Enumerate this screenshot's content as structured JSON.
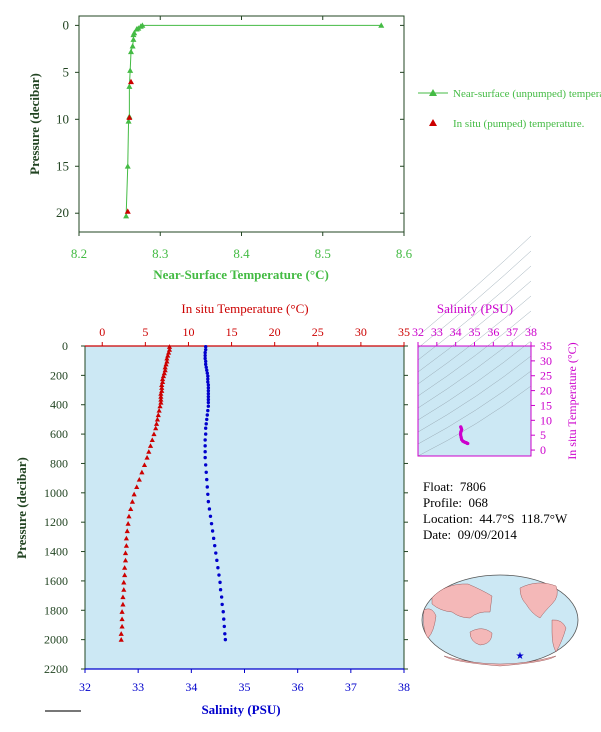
{
  "colors": {
    "green": "#44bb44",
    "red": "#cc0000",
    "blue": "#0000cc",
    "magenta": "#cc00cc",
    "axis_dark": "#224422",
    "panel_bg": "#cce8f4",
    "land": "#f4b8b8",
    "ocean": "#cce8f4"
  },
  "info": {
    "float": "Float:  7806",
    "profile": "Profile:  068",
    "location": "Location:  44.7°S  118.7°W",
    "date": "Date:  09/09/2014"
  },
  "chart_data": [
    {
      "type": "line",
      "name": "near-surface",
      "xlabel": "Near-Surface Temperature (°C)",
      "ylabel": "Pressure (decibar)",
      "xlim": [
        8.2,
        8.6
      ],
      "ylim": [
        22,
        -1
      ],
      "xticks": [
        "8.2",
        "8.3",
        "8.4",
        "8.5",
        "8.6"
      ],
      "yticks": [
        "0",
        "5",
        "10",
        "15",
        "20"
      ],
      "legend_position": "right",
      "series": [
        {
          "name": "Near-surface (unpumped) temperature.",
          "marker": "triangle-line",
          "x": [
            8.572,
            8.278,
            8.276,
            8.273,
            8.271,
            8.268,
            8.267,
            8.267,
            8.266,
            8.264,
            8.263,
            8.262,
            8.262,
            8.261,
            8.26,
            8.258
          ],
          "y": [
            0.0,
            0.0,
            0.1,
            0.3,
            0.4,
            0.8,
            1.0,
            1.5,
            2.2,
            2.8,
            4.8,
            6.5,
            9.7,
            10.2,
            15.0,
            20.3
          ]
        },
        {
          "name": "In situ (pumped) temperature.",
          "marker": "triangle",
          "x": [
            8.264,
            8.262,
            8.26
          ],
          "y": [
            6.0,
            9.8,
            19.8
          ]
        }
      ]
    },
    {
      "type": "scatter",
      "name": "profile",
      "ylabel": "Pressure (decibar)",
      "ylim": [
        2200,
        0
      ],
      "yticks": [
        "0",
        "200",
        "400",
        "600",
        "800",
        "1000",
        "1200",
        "1400",
        "1600",
        "1800",
        "2000",
        "2200"
      ],
      "top_axis": {
        "label": "In situ Temperature (°C)",
        "lim": [
          -2,
          35
        ],
        "ticks": [
          "0",
          "5",
          "10",
          "15",
          "20",
          "25",
          "30",
          "35"
        ]
      },
      "bottom_axis": {
        "label": "Salinity (PSU)",
        "lim": [
          32,
          38
        ],
        "ticks": [
          "32",
          "33",
          "34",
          "35",
          "36",
          "37",
          "38"
        ]
      },
      "series": [
        {
          "name": "temperature",
          "marker": "triangle",
          "points": [
            [
              7.8,
              5
            ],
            [
              7.8,
              25
            ],
            [
              7.7,
              45
            ],
            [
              7.6,
              65
            ],
            [
              7.5,
              85
            ],
            [
              7.5,
              105
            ],
            [
              7.4,
              125
            ],
            [
              7.3,
              145
            ],
            [
              7.3,
              165
            ],
            [
              7.2,
              185
            ],
            [
              7.1,
              205
            ],
            [
              7.0,
              225
            ],
            [
              7.0,
              245
            ],
            [
              6.9,
              265
            ],
            [
              6.9,
              285
            ],
            [
              6.9,
              305
            ],
            [
              6.8,
              325
            ],
            [
              6.8,
              345
            ],
            [
              6.8,
              365
            ],
            [
              6.8,
              385
            ],
            [
              6.7,
              410
            ],
            [
              6.6,
              440
            ],
            [
              6.5,
              470
            ],
            [
              6.4,
              500
            ],
            [
              6.3,
              530
            ],
            [
              6.2,
              560
            ],
            [
              6.0,
              600
            ],
            [
              5.8,
              640
            ],
            [
              5.6,
              680
            ],
            [
              5.4,
              720
            ],
            [
              5.2,
              760
            ],
            [
              4.9,
              810
            ],
            [
              4.6,
              860
            ],
            [
              4.3,
              910
            ],
            [
              4.0,
              960
            ],
            [
              3.7,
              1010
            ],
            [
              3.5,
              1060
            ],
            [
              3.3,
              1110
            ],
            [
              3.1,
              1160
            ],
            [
              3.0,
              1210
            ],
            [
              2.9,
              1260
            ],
            [
              2.8,
              1310
            ],
            [
              2.8,
              1360
            ],
            [
              2.7,
              1410
            ],
            [
              2.7,
              1460
            ],
            [
              2.6,
              1510
            ],
            [
              2.6,
              1560
            ],
            [
              2.5,
              1610
            ],
            [
              2.5,
              1660
            ],
            [
              2.4,
              1710
            ],
            [
              2.4,
              1760
            ],
            [
              2.3,
              1810
            ],
            [
              2.3,
              1860
            ],
            [
              2.3,
              1910
            ],
            [
              2.2,
              1960
            ],
            [
              2.2,
              2000
            ]
          ]
        },
        {
          "name": "salinity",
          "marker": "circle",
          "points": [
            [
              34.27,
              5
            ],
            [
              34.27,
              25
            ],
            [
              34.26,
              45
            ],
            [
              34.26,
              65
            ],
            [
              34.26,
              85
            ],
            [
              34.27,
              105
            ],
            [
              34.27,
              125
            ],
            [
              34.28,
              145
            ],
            [
              34.29,
              165
            ],
            [
              34.3,
              185
            ],
            [
              34.31,
              205
            ],
            [
              34.31,
              225
            ],
            [
              34.31,
              245
            ],
            [
              34.32,
              265
            ],
            [
              34.32,
              285
            ],
            [
              34.32,
              305
            ],
            [
              34.32,
              325
            ],
            [
              34.32,
              345
            ],
            [
              34.32,
              365
            ],
            [
              34.32,
              385
            ],
            [
              34.32,
              410
            ],
            [
              34.31,
              440
            ],
            [
              34.3,
              470
            ],
            [
              34.29,
              500
            ],
            [
              34.28,
              530
            ],
            [
              34.27,
              560
            ],
            [
              34.27,
              600
            ],
            [
              34.26,
              640
            ],
            [
              34.26,
              680
            ],
            [
              34.26,
              720
            ],
            [
              34.26,
              760
            ],
            [
              34.27,
              810
            ],
            [
              34.28,
              860
            ],
            [
              34.29,
              910
            ],
            [
              34.3,
              960
            ],
            [
              34.31,
              1010
            ],
            [
              34.32,
              1060
            ],
            [
              34.34,
              1110
            ],
            [
              34.36,
              1160
            ],
            [
              34.38,
              1210
            ],
            [
              34.4,
              1260
            ],
            [
              34.42,
              1310
            ],
            [
              34.44,
              1360
            ],
            [
              34.46,
              1410
            ],
            [
              34.48,
              1460
            ],
            [
              34.5,
              1510
            ],
            [
              34.52,
              1560
            ],
            [
              34.54,
              1610
            ],
            [
              34.55,
              1660
            ],
            [
              34.57,
              1710
            ],
            [
              34.58,
              1760
            ],
            [
              34.6,
              1810
            ],
            [
              34.61,
              1860
            ],
            [
              34.62,
              1910
            ],
            [
              34.63,
              1960
            ],
            [
              34.64,
              2000
            ]
          ]
        }
      ]
    },
    {
      "type": "scatter",
      "name": "t-s-diagram",
      "top_axis": {
        "label": "Salinity (PSU)",
        "lim": [
          32,
          38
        ],
        "ticks": [
          "32",
          "33",
          "34",
          "35",
          "36",
          "37",
          "38"
        ]
      },
      "right_axis": {
        "label": "In situ Temperature (°C)",
        "lim": [
          -2,
          35
        ],
        "ticks": [
          "0",
          "5",
          "10",
          "15",
          "20",
          "25",
          "30",
          "35"
        ]
      },
      "series": [
        {
          "name": "t-s",
          "points": [
            [
              34.27,
              7.8
            ],
            [
              34.3,
              7.3
            ],
            [
              34.32,
              6.9
            ],
            [
              34.3,
              6.5
            ],
            [
              34.27,
              6.0
            ],
            [
              34.26,
              5.2
            ],
            [
              34.29,
              4.3
            ],
            [
              34.32,
              3.5
            ],
            [
              34.38,
              3.0
            ],
            [
              34.44,
              2.8
            ],
            [
              34.5,
              2.6
            ],
            [
              34.56,
              2.5
            ],
            [
              34.6,
              2.3
            ],
            [
              34.64,
              2.2
            ]
          ]
        }
      ]
    }
  ]
}
